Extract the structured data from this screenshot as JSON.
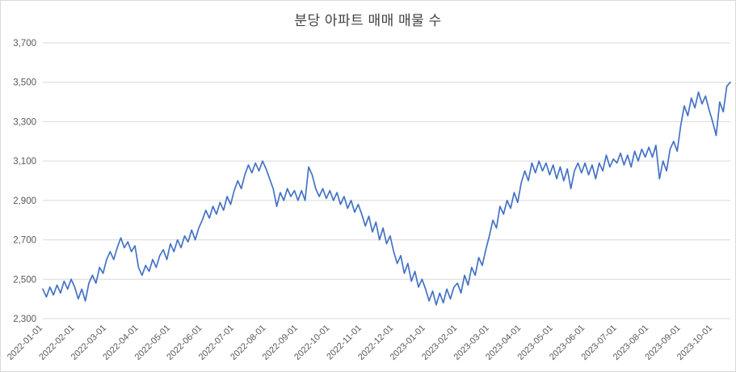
{
  "title": "분당 아파트 매매 매물 수",
  "chart_data": {
    "type": "line",
    "title": "분당 아파트 매매 매물 수",
    "series_name": "매물 수",
    "line_color": "#4472C4",
    "grid_color": "#d9d9d9",
    "axis_label_color": "#595959",
    "title_color": "#404040",
    "grid": true,
    "legend": "none",
    "ylim": [
      2300,
      3700
    ],
    "y_ticks": [
      2300,
      2500,
      2700,
      2900,
      3100,
      3300,
      3500,
      3700
    ],
    "y_tick_labels": [
      "2,300",
      "2,500",
      "2,700",
      "2,900",
      "3,100",
      "3,300",
      "3,500",
      "3,700"
    ],
    "x_tick_labels": [
      "2022-01-01",
      "2022-02-01",
      "2022-03-01",
      "2022-04-01",
      "2022-05-01",
      "2022-06-01",
      "2022-07-01",
      "2022-08-01",
      "2022-09-01",
      "2022-10-01",
      "2022-11-01",
      "2022-12-01",
      "2023-01-01",
      "2023-02-01",
      "2023-03-01",
      "2023-04-01",
      "2023-05-01",
      "2023-06-01",
      "2023-07-01",
      "2023-08-01",
      "2023-09-01",
      "2023-10-01"
    ],
    "points_per_month": 9,
    "values": [
      2450,
      2410,
      2460,
      2420,
      2470,
      2430,
      2490,
      2450,
      2500,
      2460,
      2400,
      2450,
      2390,
      2480,
      2520,
      2480,
      2560,
      2530,
      2600,
      2640,
      2600,
      2660,
      2710,
      2660,
      2690,
      2640,
      2670,
      2560,
      2520,
      2570,
      2540,
      2600,
      2560,
      2620,
      2650,
      2600,
      2680,
      2640,
      2700,
      2660,
      2720,
      2690,
      2750,
      2700,
      2760,
      2800,
      2850,
      2810,
      2870,
      2830,
      2890,
      2850,
      2920,
      2880,
      2950,
      3000,
      2960,
      3030,
      3080,
      3040,
      3090,
      3050,
      3100,
      3060,
      3010,
      2960,
      2870,
      2940,
      2900,
      2960,
      2920,
      2950,
      2900,
      2950,
      2900,
      3070,
      3030,
      2960,
      2920,
      2960,
      2910,
      2950,
      2900,
      2940,
      2880,
      2920,
      2860,
      2900,
      2840,
      2880,
      2830,
      2770,
      2820,
      2740,
      2790,
      2700,
      2760,
      2680,
      2720,
      2640,
      2580,
      2620,
      2530,
      2580,
      2490,
      2540,
      2460,
      2500,
      2450,
      2390,
      2440,
      2370,
      2430,
      2380,
      2450,
      2400,
      2460,
      2480,
      2430,
      2520,
      2470,
      2560,
      2520,
      2610,
      2570,
      2650,
      2720,
      2800,
      2760,
      2870,
      2830,
      2900,
      2860,
      2940,
      2890,
      2990,
      3050,
      3000,
      3090,
      3040,
      3100,
      3050,
      3090,
      3030,
      3080,
      3010,
      3070,
      3000,
      3060,
      2960,
      3050,
      3090,
      3040,
      3090,
      3030,
      3080,
      3010,
      3090,
      3050,
      3130,
      3070,
      3110,
      3090,
      3140,
      3080,
      3130,
      3070,
      3150,
      3100,
      3160,
      3120,
      3170,
      3120,
      3180,
      3010,
      3100,
      3050,
      3160,
      3200,
      3150,
      3280,
      3380,
      3330,
      3420,
      3370,
      3450,
      3390,
      3430,
      3360,
      3300,
      3230,
      3400,
      3350,
      3480,
      3500
    ]
  }
}
